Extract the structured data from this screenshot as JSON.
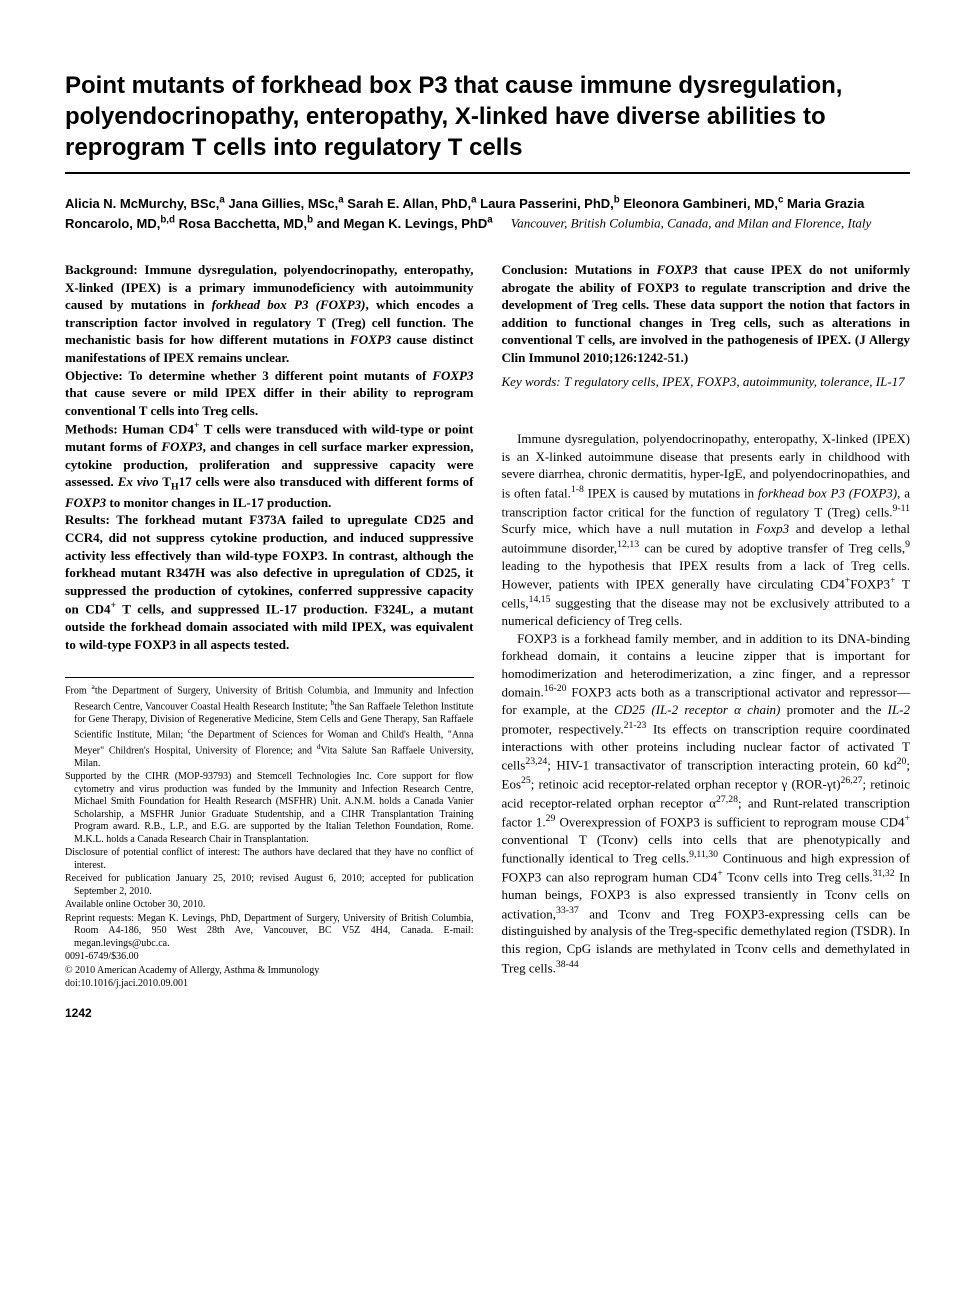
{
  "title": "Point mutants of forkhead box P3 that cause immune dysregulation, polyendocrinopathy, enteropathy, X-linked have diverse abilities to reprogram T cells into regulatory T cells",
  "authors_html": "Alicia N. McMurchy, BSc,<span class='sup'>a</span> Jana Gillies, MSc,<span class='sup'>a</span> Sarah E. Allan, PhD,<span class='sup'>a</span> Laura Passerini, PhD,<span class='sup'>b</span> Eleonora Gambineri, MD,<span class='sup'>c</span> Maria Grazia Roncarolo, MD,<span class='sup'>b,d</span> Rosa Bacchetta, MD,<span class='sup'>b</span> and Megan K. Levings, PhD<span class='sup'>a</span>",
  "location": "Vancouver, British Columbia, Canada, and Milan and Florence, Italy",
  "abstract": {
    "background": "Background: Immune dysregulation, polyendocrinopathy, enteropathy, X-linked (IPEX) is a primary immunodeficiency with autoimmunity caused by mutations in <span class='gene'>forkhead box P3 (FOXP3)</span>, which encodes a transcription factor involved in regulatory T (Treg) cell function. The mechanistic basis for how different mutations in <span class='gene'>FOXP3</span> cause distinct manifestations of IPEX remains unclear.",
    "objective": "Objective: To determine whether 3 different point mutants of <span class='gene'>FOXP3</span> that cause severe or mild IPEX differ in their ability to reprogram conventional T cells into Treg cells.",
    "methods": "Methods: Human CD4<span class='sup'>+</span> T cells were transduced with wild-type or point mutant forms of <span class='gene'>FOXP3</span>, and changes in cell surface marker expression, cytokine production, proliferation and suppressive capacity were assessed. <span class='gene'>Ex vivo</span> T<span class='sub'>H</span>17 cells were also transduced with different forms of <span class='gene'>FOXP3</span> to monitor changes in IL-17 production.",
    "results": "Results: The forkhead mutant F373A failed to upregulate CD25 and CCR4, did not suppress cytokine production, and induced suppressive activity less effectively than wild-type FOXP3. In contrast, although the forkhead mutant R347H was also defective in upregulation of CD25, it suppressed the production of cytokines, conferred suppressive capacity on CD4<span class='sup'>+</span> T cells, and suppressed IL-17 production. F324L, a mutant outside the forkhead domain associated with mild IPEX, was equivalent to wild-type FOXP3 in all aspects tested.",
    "conclusion": "Conclusion: Mutations in <span class='gene'>FOXP3</span> that cause IPEX do not uniformly abrogate the ability of FOXP3 to regulate transcription and drive the development of Treg cells. These data support the notion that factors in addition to functional changes in Treg cells, such as alterations in conventional T cells, are involved in the pathogenesis of IPEX. (J Allergy Clin Immunol 2010;126:1242-51.)"
  },
  "keywords": "Key words: T regulatory cells, IPEX, FOXP3, autoimmunity, tolerance, IL-17",
  "body": {
    "p1": "Immune dysregulation, polyendocrinopathy, enteropathy, X-linked (IPEX) is an X-linked autoimmune disease that presents early in childhood with severe diarrhea, chronic dermatitis, hyper-IgE, and polyendocrinopathies, and is often fatal.<span class='sup'>1-8</span> IPEX is caused by mutations in <span class='gene-n'>forkhead box P3 (FOXP3)</span>, a transcription factor critical for the function of regulatory T (Treg) cells.<span class='sup'>9-11</span> Scurfy mice, which have a null mutation in <span class='gene-n'>Foxp3</span> and develop a lethal autoimmune disorder,<span class='sup'>12,13</span> can be cured by adoptive transfer of Treg cells,<span class='sup'>9</span> leading to the hypothesis that IPEX results from a lack of Treg cells. However, patients with IPEX generally have circulating CD4<span class='sup'>+</span>FOXP3<span class='sup'>+</span> T cells,<span class='sup'>14,15</span> suggesting that the disease may not be exclusively attributed to a numerical deficiency of Treg cells.",
    "p2": "FOXP3 is a forkhead family member, and in addition to its DNA-binding forkhead domain, it contains a leucine zipper that is important for homodimerization and heterodimerization, a zinc finger, and a repressor domain.<span class='sup'>16-20</span> FOXP3 acts both as a transcriptional activator and repressor—for example, at the <span class='gene-n'>CD25 (IL-2 receptor α chain)</span> promoter and the <span class='gene-n'>IL-2</span> promoter, respectively.<span class='sup'>21-23</span> Its effects on transcription require coordinated interactions with other proteins including nuclear factor of activated T cells<span class='sup'>23,24</span>; HIV-1 transactivator of transcription interacting protein, 60 kd<span class='sup'>20</span>; Eos<span class='sup'>25</span>; retinoic acid receptor-related orphan receptor γ (ROR-γt)<span class='sup'>26,27</span>; retinoic acid receptor-related orphan receptor α<span class='sup'>27,28</span>; and Runt-related transcription factor 1.<span class='sup'>29</span> Overexpression of FOXP3 is sufficient to reprogram mouse CD4<span class='sup'>+</span> conventional T (Tconv) cells into cells that are phenotypically and functionally identical to Treg cells.<span class='sup'>9,11,30</span> Continuous and high expression of FOXP3 can also reprogram human CD4<span class='sup'>+</span> Tconv cells into Treg cells.<span class='sup'>31,32</span> In human beings, FOXP3 is also expressed transiently in Tconv cells on activation,<span class='sup'>33-37</span> and Tconv and Treg FOXP3-expressing cells can be distinguished by analysis of the Treg-specific demethylated region (TSDR). In this region, CpG islands are methylated in Tconv cells and demethylated in Treg cells.<span class='sup'>38-44</span>"
  },
  "footnotes": {
    "from": "From <span class='sup'>a</span>the Department of Surgery, University of British Columbia, and Immunity and Infection Research Centre, Vancouver Coastal Health Research Institute; <span class='sup'>b</span>the San Raffaele Telethon Institute for Gene Therapy, Division of Regenerative Medicine, Stem Cells and Gene Therapy, San Raffaele Scientific Institute, Milan; <span class='sup'>c</span>the Department of Sciences for Woman and Child's Health, \"Anna Meyer\" Children's Hospital, University of Florence; and <span class='sup'>d</span>Vita Salute San Raffaele University, Milan.",
    "supported": "Supported by the CIHR (MOP-93793) and Stemcell Technologies Inc. Core support for flow cytometry and virus production was funded by the Immunity and Infection Research Centre, Michael Smith Foundation for Health Research (MSFHR) Unit. A.N.M. holds a Canada Vanier Scholarship, a MSFHR Junior Graduate Studentship, and a CIHR Transplantation Training Program award. R.B., L.P., and E.G. are supported by the Italian Telethon Foundation, Rome. M.K.L. holds a Canada Research Chair in Transplantation.",
    "disclosure": "Disclosure of potential conflict of interest: The authors have declared that they have no conflict of interest.",
    "received": "Received for publication January 25, 2010; revised August 6, 2010; accepted for publication September 2, 2010.",
    "available": "Available online October 30, 2010.",
    "reprint": "Reprint requests: Megan K. Levings, PhD, Department of Surgery, University of British Columbia, Room A4-186, 950 West 28th Ave, Vancouver, BC V5Z 4H4, Canada. E-mail: megan.levings@ubc.ca.",
    "issn": "0091-6749/$36.00",
    "copyright": "© 2010 American Academy of Allergy, Asthma & Immunology",
    "doi": "doi:10.1016/j.jaci.2010.09.001"
  },
  "page_number": "1242"
}
